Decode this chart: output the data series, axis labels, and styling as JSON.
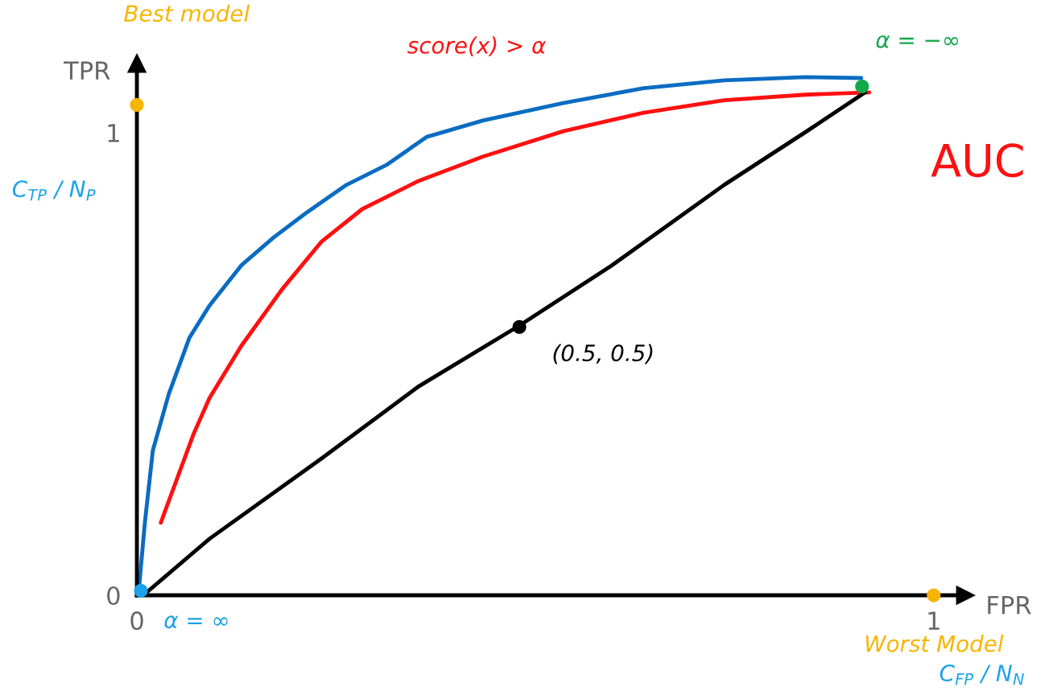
{
  "chart_data": {
    "type": "line",
    "xlabel": "FPR",
    "ylabel": "TPR",
    "xlim": [
      0,
      1.04
    ],
    "ylim": [
      0,
      1.15
    ],
    "xticks": [
      0,
      1
    ],
    "yticks": [
      0,
      1
    ],
    "grid": false,
    "line_style": "solid",
    "series": [
      {
        "color": "#0a6cc2",
        "x": [
          0.002,
          0.01,
          0.02,
          0.04,
          0.066,
          0.091,
          0.131,
          0.172,
          0.212,
          0.263,
          0.313,
          0.364,
          0.434,
          0.535,
          0.636,
          0.737,
          0.838,
          0.909
        ],
        "values": [
          0.003,
          0.157,
          0.313,
          0.435,
          0.557,
          0.626,
          0.713,
          0.774,
          0.826,
          0.887,
          0.93,
          0.991,
          1.026,
          1.064,
          1.096,
          1.113,
          1.12,
          1.118
        ]
      },
      {
        "color": "#ff1010",
        "x": [
          0.03,
          0.071,
          0.091,
          0.131,
          0.182,
          0.232,
          0.283,
          0.354,
          0.434,
          0.535,
          0.636,
          0.737,
          0.838,
          0.919
        ],
        "values": [
          0.157,
          0.348,
          0.426,
          0.539,
          0.661,
          0.765,
          0.835,
          0.896,
          0.948,
          1.003,
          1.043,
          1.07,
          1.082,
          1.087
        ]
      },
      {
        "color": "#000000",
        "x": [
          0.01,
          0.091,
          0.232,
          0.354,
          0.48,
          0.596,
          0.737,
          0.838,
          0.914
        ],
        "values": [
          0.003,
          0.122,
          0.296,
          0.452,
          0.583,
          0.713,
          0.887,
          1.0,
          1.087
        ]
      },
      {
        "type": "scatter",
        "x": [
          0,
          0.91,
          0.005,
          1.0,
          0.48
        ],
        "values": [
          1.06,
          1.1,
          0.01,
          0.0,
          0.58
        ],
        "colors": [
          "#f7b500",
          "#12a84a",
          "#1aa3e8",
          "#f7b500",
          "#000000"
        ]
      }
    ],
    "annotations": [
      "Best model",
      "score(x) > α",
      {
        "text": "α = −∞",
        "x": 0.91,
        "y": 1.1
      },
      "AUC",
      {
        "text": "(0.5, 0.5)",
        "x": 0.48,
        "y": 0.58
      },
      {
        "text": "α = ∞",
        "x": 0.005,
        "y": 0.01
      },
      {
        "text": "Worst Model",
        "x": 1.0,
        "y": 0.0
      },
      "C$_{TP}$ / N$_{P}$",
      "C$_{FP}$ / N$_{N}$"
    ]
  }
}
